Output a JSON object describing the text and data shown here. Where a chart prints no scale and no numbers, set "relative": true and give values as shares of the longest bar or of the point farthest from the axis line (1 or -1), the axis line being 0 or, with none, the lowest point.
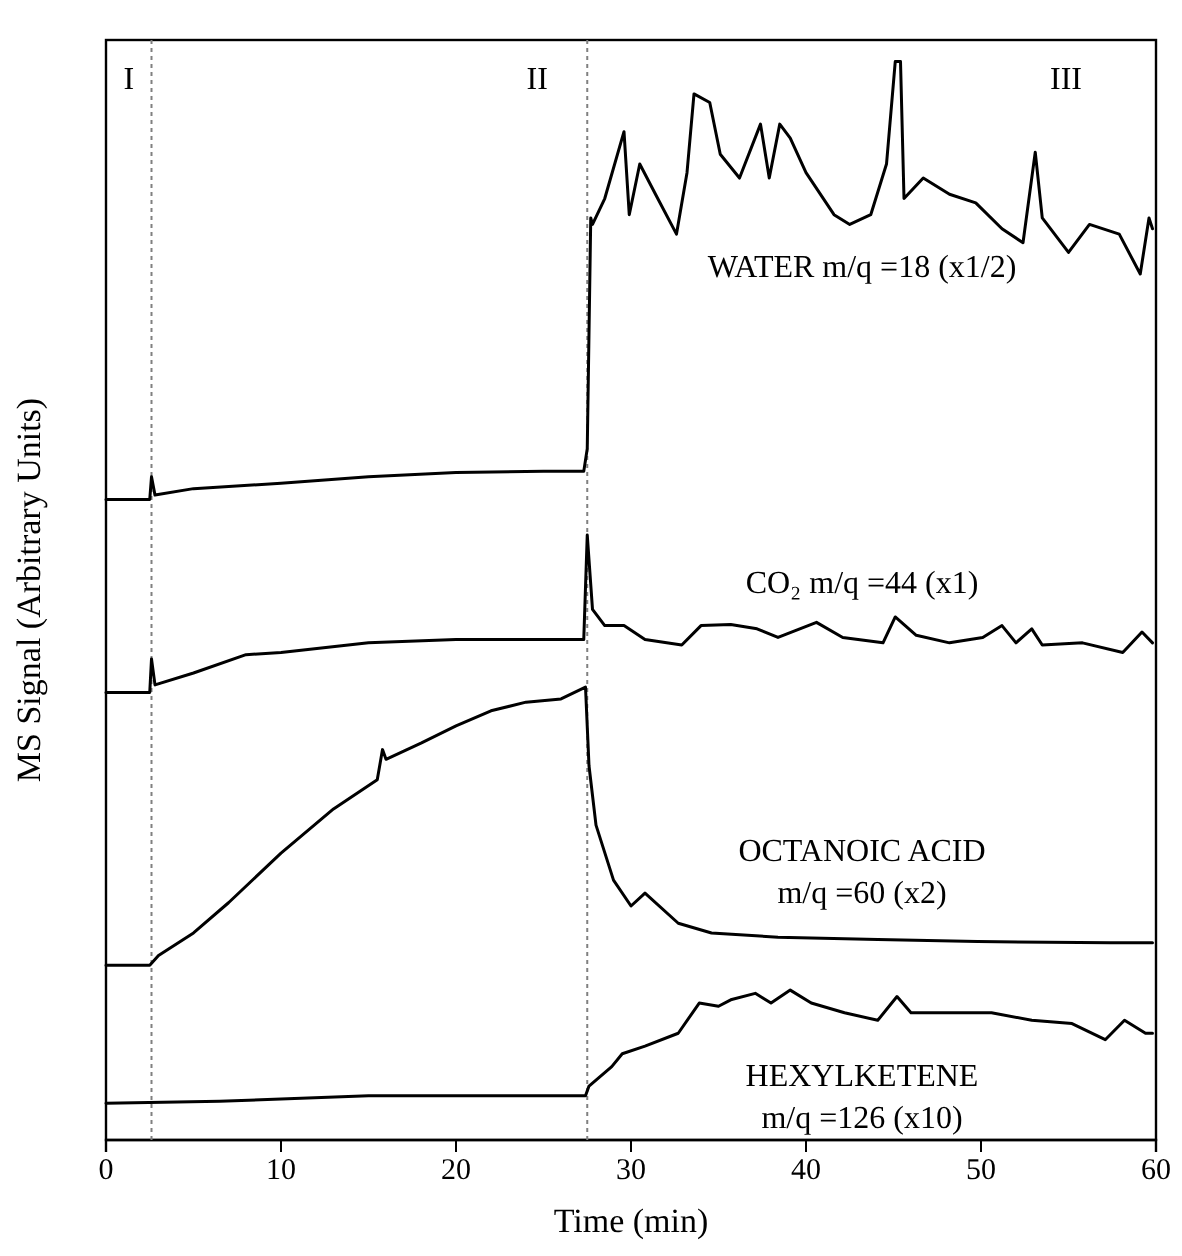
{
  "chart_data": {
    "type": "line",
    "relative": true,
    "xlabel": "Time (min)",
    "ylabel": "MS Signal (Arbitrary Units)",
    "xlim": [
      0,
      60
    ],
    "xticks": [
      0,
      10,
      20,
      30,
      40,
      50,
      60
    ],
    "grid": false,
    "marker": "none",
    "line_style": "solid",
    "series": [
      {
        "name": "WATER m/q =18 (x1/2)",
        "color": "#000000",
        "x": [
          0,
          2.5,
          2.6,
          2.8,
          5,
          10,
          15,
          20,
          25,
          27.3,
          27.5,
          27.7,
          27.8,
          28.5,
          29.6,
          29.9,
          30.5,
          31.4,
          32.6,
          33.2,
          33.6,
          34.5,
          35.1,
          36.2,
          37.4,
          37.9,
          38.5,
          39.1,
          40.0,
          41.6,
          42.5,
          43.7,
          44.6,
          45.1,
          45.4,
          45.6,
          46.7,
          48.2,
          49.7,
          51.2,
          52.4,
          53.1,
          53.5,
          55.0,
          56.2,
          57.9,
          59.1,
          59.6,
          59.8
        ],
        "values": [
          0.594,
          0.594,
          0.615,
          0.598,
          0.604,
          0.609,
          0.615,
          0.619,
          0.62,
          0.62,
          0.641,
          0.855,
          0.849,
          0.873,
          0.935,
          0.858,
          0.905,
          0.877,
          0.84,
          0.897,
          0.97,
          0.962,
          0.914,
          0.892,
          0.942,
          0.892,
          0.942,
          0.929,
          0.897,
          0.858,
          0.849,
          0.858,
          0.905,
          1.0,
          1.0,
          0.873,
          0.892,
          0.877,
          0.869,
          0.845,
          0.832,
          0.916,
          0.855,
          0.823,
          0.849,
          0.84,
          0.803,
          0.855,
          0.845
        ]
      },
      {
        "name": "CO₂ m/q =44 (x1)",
        "color": "#000000",
        "x": [
          0,
          2.5,
          2.6,
          2.8,
          5,
          8,
          10,
          15,
          20,
          27.3,
          27.5,
          27.8,
          28.5,
          29.6,
          30.8,
          32.9,
          34.0,
          35.7,
          37.2,
          38.4,
          40.6,
          42.1,
          44.4,
          45.1,
          46.3,
          48.2,
          50.1,
          51.2,
          52.0,
          52.9,
          53.5,
          55.8,
          58.1,
          59.2,
          59.8
        ],
        "values": [
          0.415,
          0.415,
          0.446,
          0.422,
          0.433,
          0.45,
          0.452,
          0.461,
          0.464,
          0.464,
          0.561,
          0.492,
          0.477,
          0.477,
          0.464,
          0.459,
          0.477,
          0.478,
          0.474,
          0.466,
          0.48,
          0.466,
          0.461,
          0.485,
          0.468,
          0.461,
          0.466,
          0.477,
          0.461,
          0.474,
          0.459,
          0.461,
          0.452,
          0.471,
          0.461
        ]
      },
      {
        "name": "OCTANOIC ACID m/q =60 (x2)",
        "color": "#000000",
        "x": [
          0,
          2.5,
          3,
          5,
          7,
          10,
          13,
          15.5,
          15.8,
          16,
          18,
          20,
          22,
          24,
          26,
          27.4,
          27.6,
          28,
          29,
          30,
          30.8,
          32.7,
          34.6,
          38.4,
          44.1,
          49.8,
          57.4,
          59.8
        ],
        "values": [
          0.162,
          0.162,
          0.171,
          0.192,
          0.22,
          0.266,
          0.307,
          0.334,
          0.362,
          0.353,
          0.368,
          0.384,
          0.398,
          0.406,
          0.409,
          0.42,
          0.347,
          0.292,
          0.241,
          0.217,
          0.229,
          0.201,
          0.192,
          0.188,
          0.186,
          0.184,
          0.183,
          0.183
        ]
      },
      {
        "name": "HEXYLKETENE m/q =126 (x10)",
        "color": "#000000",
        "x": [
          0,
          6.5,
          10,
          15,
          27.4,
          27.6,
          28.9,
          29.5,
          30.8,
          32.7,
          33.9,
          35.0,
          35.7,
          37.1,
          38.0,
          39.1,
          40.3,
          42.2,
          44.1,
          45.2,
          46.0,
          48.3,
          50.6,
          52.9,
          55.2,
          57.1,
          58.2,
          59.4,
          59.8
        ],
        "values": [
          0.034,
          0.036,
          0.038,
          0.041,
          0.041,
          0.05,
          0.068,
          0.08,
          0.087,
          0.099,
          0.127,
          0.124,
          0.13,
          0.136,
          0.127,
          0.139,
          0.127,
          0.118,
          0.111,
          0.133,
          0.118,
          0.118,
          0.118,
          0.111,
          0.108,
          0.093,
          0.111,
          0.099,
          0.099
        ]
      }
    ],
    "ref_lines": [
      {
        "axis": "x",
        "value": 2.6,
        "color": "#808080",
        "line_style": "dotted"
      },
      {
        "axis": "x",
        "value": 27.5,
        "color": "#808080",
        "line_style": "dotted"
      }
    ],
    "annotations": [
      "I",
      "II",
      "III"
    ]
  }
}
